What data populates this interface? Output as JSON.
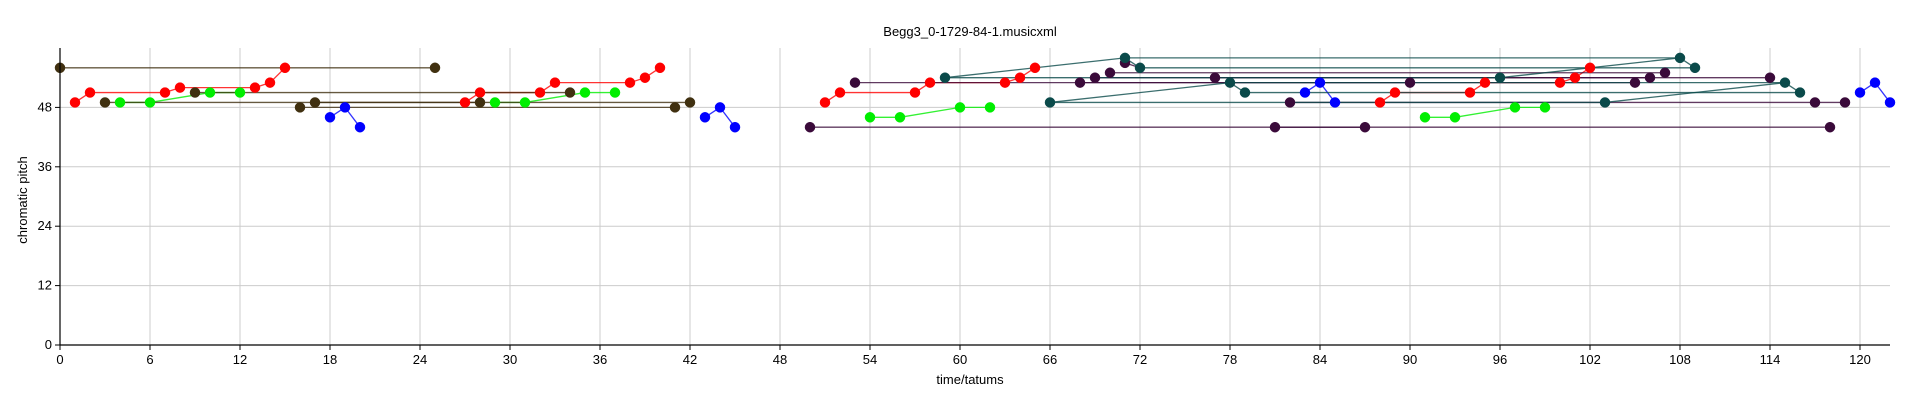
{
  "chart_data": {
    "type": "scatter",
    "title": "Begg3_0-1729-84-1.musicxml",
    "xlabel": "time/tatums",
    "ylabel": "chromatic pitch",
    "xlim": [
      0,
      122
    ],
    "ylim": [
      0,
      60
    ],
    "xticks": [
      0,
      6,
      12,
      18,
      24,
      30,
      36,
      42,
      48,
      54,
      60,
      66,
      72,
      78,
      84,
      90,
      96,
      102,
      108,
      114,
      120
    ],
    "yticks": [
      0,
      12,
      24,
      36,
      48
    ],
    "grid": true,
    "legend": "none",
    "series": [
      {
        "color": "#ff0000",
        "points": [
          [
            1,
            49
          ],
          [
            2,
            51
          ],
          [
            7,
            51
          ],
          [
            8,
            52
          ],
          [
            13,
            52
          ],
          [
            14,
            53
          ],
          [
            15,
            56
          ],
          [
            27,
            49
          ],
          [
            28,
            51
          ],
          [
            32,
            51
          ],
          [
            33,
            53
          ],
          [
            38,
            53
          ],
          [
            39,
            54
          ],
          [
            40,
            56
          ],
          [
            51,
            49
          ],
          [
            52,
            51
          ],
          [
            57,
            51
          ],
          [
            58,
            53
          ],
          [
            63,
            53
          ],
          [
            64,
            54
          ],
          [
            65,
            56
          ],
          [
            88,
            49
          ],
          [
            89,
            51
          ],
          [
            94,
            51
          ],
          [
            95,
            53
          ],
          [
            100,
            53
          ],
          [
            101,
            54
          ],
          [
            102,
            56
          ]
        ],
        "links": [
          [
            1,
            49,
            2,
            51
          ],
          [
            2,
            51,
            7,
            51
          ],
          [
            7,
            51,
            8,
            52
          ],
          [
            8,
            52,
            13,
            52
          ],
          [
            13,
            52,
            14,
            53
          ],
          [
            14,
            53,
            15,
            56
          ],
          [
            27,
            49,
            28,
            51
          ],
          [
            28,
            51,
            32,
            51
          ],
          [
            32,
            51,
            33,
            53
          ],
          [
            33,
            53,
            38,
            53
          ],
          [
            38,
            53,
            39,
            54
          ],
          [
            39,
            54,
            40,
            56
          ],
          [
            51,
            49,
            52,
            51
          ],
          [
            52,
            51,
            57,
            51
          ],
          [
            57,
            51,
            58,
            53
          ],
          [
            58,
            53,
            63,
            53
          ],
          [
            63,
            53,
            64,
            54
          ],
          [
            64,
            54,
            65,
            56
          ],
          [
            88,
            49,
            89,
            51
          ],
          [
            89,
            51,
            94,
            51
          ],
          [
            94,
            51,
            95,
            53
          ],
          [
            95,
            53,
            100,
            53
          ],
          [
            100,
            53,
            101,
            54
          ],
          [
            101,
            54,
            102,
            56
          ]
        ]
      },
      {
        "color": "#00ee00",
        "points": [
          [
            4,
            49
          ],
          [
            6,
            49
          ],
          [
            10,
            51
          ],
          [
            12,
            51
          ],
          [
            29,
            49
          ],
          [
            31,
            49
          ],
          [
            35,
            51
          ],
          [
            37,
            51
          ],
          [
            54,
            46
          ],
          [
            56,
            46
          ],
          [
            60,
            48
          ],
          [
            62,
            48
          ],
          [
            91,
            46
          ],
          [
            93,
            46
          ],
          [
            97,
            48
          ],
          [
            99,
            48
          ]
        ],
        "links": [
          [
            4,
            49,
            6,
            49
          ],
          [
            6,
            49,
            10,
            51
          ],
          [
            10,
            51,
            12,
            51
          ],
          [
            29,
            49,
            31,
            49
          ],
          [
            31,
            49,
            35,
            51
          ],
          [
            35,
            51,
            37,
            51
          ],
          [
            54,
            46,
            56,
            46
          ],
          [
            56,
            46,
            60,
            48
          ],
          [
            60,
            48,
            62,
            48
          ],
          [
            91,
            46,
            93,
            46
          ],
          [
            93,
            46,
            97,
            48
          ],
          [
            97,
            48,
            99,
            48
          ]
        ]
      },
      {
        "color": "#0000ff",
        "points": [
          [
            18,
            46
          ],
          [
            19,
            48
          ],
          [
            20,
            44
          ],
          [
            43,
            46
          ],
          [
            44,
            48
          ],
          [
            45,
            44
          ],
          [
            83,
            51
          ],
          [
            84,
            53
          ],
          [
            85,
            49
          ],
          [
            120,
            51
          ],
          [
            121,
            53
          ],
          [
            122,
            49
          ]
        ],
        "links": [
          [
            18,
            46,
            19,
            48
          ],
          [
            19,
            48,
            20,
            44
          ],
          [
            43,
            46,
            44,
            48
          ],
          [
            44,
            48,
            45,
            44
          ],
          [
            83,
            51,
            84,
            53
          ],
          [
            84,
            53,
            85,
            49
          ],
          [
            120,
            51,
            121,
            53
          ],
          [
            121,
            53,
            122,
            49
          ]
        ]
      },
      {
        "color": "#403010",
        "points": [
          [
            0,
            56
          ],
          [
            25,
            56
          ],
          [
            3,
            49
          ],
          [
            9,
            51
          ],
          [
            16,
            48
          ],
          [
            17,
            49
          ],
          [
            28,
            49
          ],
          [
            34,
            51
          ],
          [
            41,
            48
          ],
          [
            42,
            49
          ]
        ],
        "links": [
          [
            0,
            56,
            25,
            56
          ],
          [
            3,
            49,
            28,
            49
          ],
          [
            9,
            51,
            34,
            51
          ],
          [
            16,
            48,
            41,
            48
          ],
          [
            17,
            49,
            42,
            49
          ]
        ]
      },
      {
        "color": "#3a0a3a",
        "points": [
          [
            50,
            44
          ],
          [
            87,
            44
          ],
          [
            53,
            53
          ],
          [
            68,
            53
          ],
          [
            69,
            54
          ],
          [
            70,
            55
          ],
          [
            71,
            57
          ],
          [
            77,
            54
          ],
          [
            81,
            44
          ],
          [
            82,
            49
          ],
          [
            90,
            53
          ],
          [
            105,
            53
          ],
          [
            106,
            54
          ],
          [
            107,
            55
          ],
          [
            114,
            54
          ],
          [
            117,
            49
          ],
          [
            118,
            44
          ],
          [
            119,
            49
          ]
        ],
        "links": [
          [
            50,
            44,
            87,
            44
          ],
          [
            53,
            53,
            90,
            53
          ],
          [
            68,
            53,
            105,
            53
          ],
          [
            69,
            54,
            106,
            54
          ],
          [
            70,
            55,
            107,
            55
          ],
          [
            71,
            57,
            72,
            56
          ],
          [
            77,
            54,
            114,
            54
          ],
          [
            81,
            44,
            118,
            44
          ],
          [
            82,
            49,
            119,
            49
          ]
        ]
      },
      {
        "color": "#0a4a4a",
        "points": [
          [
            59,
            54
          ],
          [
            66,
            49
          ],
          [
            71,
            58
          ],
          [
            72,
            56
          ],
          [
            78,
            53
          ],
          [
            79,
            51
          ],
          [
            96,
            54
          ],
          [
            103,
            49
          ],
          [
            108,
            58
          ],
          [
            109,
            56
          ],
          [
            115,
            53
          ],
          [
            116,
            51
          ]
        ],
        "links": [
          [
            59,
            54,
            71,
            58
          ],
          [
            71,
            58,
            72,
            56
          ],
          [
            59,
            54,
            96,
            54
          ],
          [
            66,
            49,
            103,
            49
          ],
          [
            71,
            58,
            108,
            58
          ],
          [
            72,
            56,
            109,
            56
          ],
          [
            78,
            53,
            115,
            53
          ],
          [
            79,
            51,
            116,
            51
          ],
          [
            66,
            49,
            78,
            53
          ],
          [
            78,
            53,
            79,
            51
          ],
          [
            103,
            49,
            115,
            53
          ],
          [
            115,
            53,
            116,
            51
          ],
          [
            96,
            54,
            108,
            58
          ],
          [
            108,
            58,
            109,
            56
          ]
        ]
      }
    ]
  }
}
